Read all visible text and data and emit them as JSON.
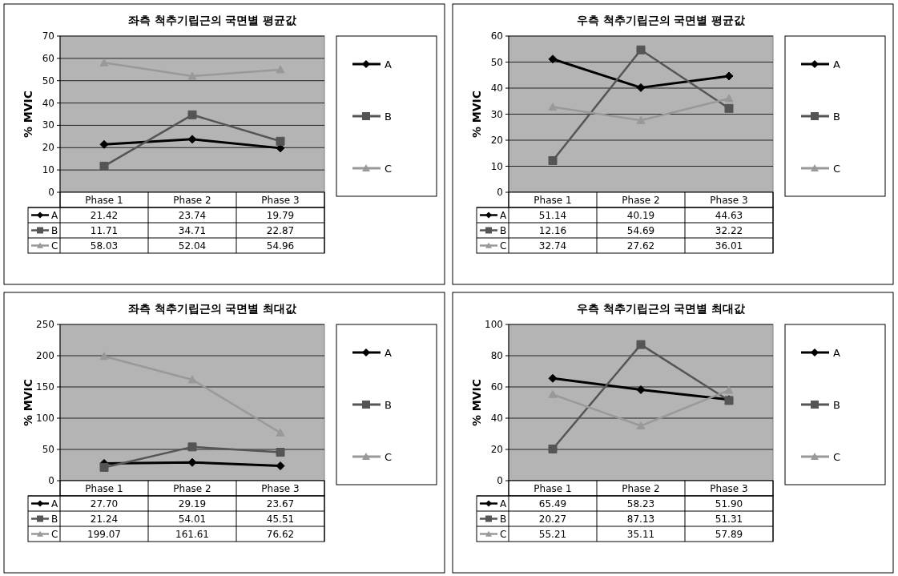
{
  "chart_data": [
    {
      "type": "line",
      "title": "좌측 척추기립근의 국면별 평균값",
      "ylabel": "% MVIC",
      "categories": [
        "Phase 1",
        "Phase 2",
        "Phase 3"
      ],
      "ylim": [
        0,
        70
      ],
      "yticks": [
        0,
        10,
        20,
        30,
        40,
        50,
        60,
        70
      ],
      "grid": "y",
      "legend": "right",
      "series": [
        {
          "name": "A",
          "color": "#000000",
          "marker": "diamond",
          "values": [
            21.42,
            23.74,
            19.79
          ],
          "value_labels": [
            "21.42",
            "23.74",
            "19.79"
          ]
        },
        {
          "name": "B",
          "color": "#555555",
          "marker": "square",
          "values": [
            11.71,
            34.71,
            22.87
          ],
          "value_labels": [
            "11.71",
            "34.71",
            "22.87"
          ]
        },
        {
          "name": "C",
          "color": "#999999",
          "marker": "triangle",
          "values": [
            58.03,
            52.04,
            54.96
          ],
          "value_labels": [
            "58.03",
            "52.04",
            "54.96"
          ]
        }
      ]
    },
    {
      "type": "line",
      "title": "우측 척추기립근의 국면별 평균값",
      "ylabel": "% MVIC",
      "categories": [
        "Phase 1",
        "Phase 2",
        "Phase 3"
      ],
      "ylim": [
        0,
        60
      ],
      "yticks": [
        0,
        10,
        20,
        30,
        40,
        50,
        60
      ],
      "grid": "y",
      "legend": "right",
      "series": [
        {
          "name": "A",
          "color": "#000000",
          "marker": "diamond",
          "values": [
            51.14,
            40.19,
            44.63
          ],
          "value_labels": [
            "51.14",
            "40.19",
            "44.63"
          ]
        },
        {
          "name": "B",
          "color": "#555555",
          "marker": "square",
          "values": [
            12.16,
            54.69,
            32.22
          ],
          "value_labels": [
            "12.16",
            "54.69",
            "32.22"
          ]
        },
        {
          "name": "C",
          "color": "#999999",
          "marker": "triangle",
          "values": [
            32.74,
            27.62,
            36.01
          ],
          "value_labels": [
            "32.74",
            "27.62",
            "36.01"
          ]
        }
      ]
    },
    {
      "type": "line",
      "title": "좌측 척추기립근의 국면별 최대값",
      "ylabel": "% MVIC",
      "categories": [
        "Phase 1",
        "Phase 2",
        "Phase 3"
      ],
      "ylim": [
        0,
        250
      ],
      "yticks": [
        0,
        50,
        100,
        150,
        200,
        250
      ],
      "grid": "y",
      "legend": "right",
      "series": [
        {
          "name": "A",
          "color": "#000000",
          "marker": "diamond",
          "values": [
            27.7,
            29.19,
            23.67
          ],
          "value_labels": [
            "27.70",
            "29.19",
            "23.67"
          ]
        },
        {
          "name": "B",
          "color": "#555555",
          "marker": "square",
          "values": [
            21.24,
            54.01,
            45.51
          ],
          "value_labels": [
            "21.24",
            "54.01",
            "45.51"
          ]
        },
        {
          "name": "C",
          "color": "#999999",
          "marker": "triangle",
          "values": [
            199.07,
            161.61,
            76.62
          ],
          "value_labels": [
            "199.07",
            "161.61",
            "76.62"
          ]
        }
      ]
    },
    {
      "type": "line",
      "title": "우측 척추기립근의 국면별 최대값",
      "ylabel": "% MVIC",
      "categories": [
        "Phase 1",
        "Phase 2",
        "Phase 3"
      ],
      "ylim": [
        0,
        100
      ],
      "yticks": [
        0,
        20,
        40,
        60,
        80,
        100
      ],
      "grid": "y",
      "legend": "right",
      "series": [
        {
          "name": "A",
          "color": "#000000",
          "marker": "diamond",
          "values": [
            65.49,
            58.23,
            51.9
          ],
          "value_labels": [
            "65.49",
            "58.23",
            "51.90"
          ]
        },
        {
          "name": "B",
          "color": "#555555",
          "marker": "square",
          "values": [
            20.27,
            87.13,
            51.31
          ],
          "value_labels": [
            "20.27",
            "87.13",
            "51.31"
          ]
        },
        {
          "name": "C",
          "color": "#999999",
          "marker": "triangle",
          "values": [
            55.21,
            35.11,
            57.89
          ],
          "value_labels": [
            "55.21",
            "35.11",
            "57.89"
          ]
        }
      ]
    }
  ]
}
